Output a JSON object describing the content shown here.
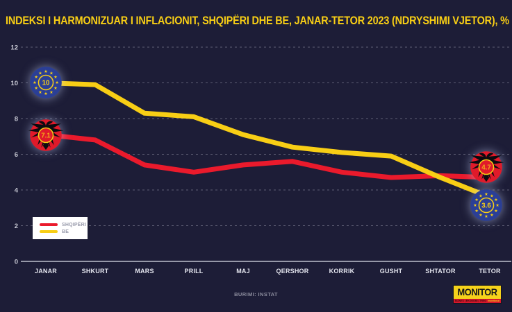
{
  "title": "INDEKSI I HARMONIZUAR I INFLACIONIT, SHQIPËRI DHE BE, JANAR-TETOR 2023 (NDRYSHIMI VJETOR), %",
  "source": "BURIMI: INSTAT",
  "logo": {
    "name": "MONITOR",
    "tagline": "BIZNES | EKONOMI | TREG",
    "site": "monitor.al"
  },
  "colors": {
    "background": "#1d1d37",
    "title_yellow": "#f8ce15",
    "albania_red": "#ea1a2c",
    "eu_yellow": "#f8ce15",
    "eu_flag_blue": "#2b3f96",
    "albania_flag_red": "#e01a2a",
    "badge_ring_yellow": "#f8ce15",
    "gridline": "#5f5f75"
  },
  "chart_data": {
    "type": "line",
    "title": "INDEKSI I HARMONIZUAR I INFLACIONIT, SHQIPËRI DHE BE, JANAR-TETOR 2023 (NDRYSHIMI VJETOR), %",
    "categories": [
      "JANAR",
      "SHKURT",
      "MARS",
      "PRILL",
      "MAJ",
      "QERSHOR",
      "KORRIK",
      "GUSHT",
      "SHTATOR",
      "TETOR"
    ],
    "series": [
      {
        "name": "SHQIPËRI",
        "color": "#ea1a2c",
        "values": [
          7.1,
          6.8,
          5.4,
          5.0,
          5.4,
          5.6,
          5.0,
          4.7,
          4.8,
          4.7
        ]
      },
      {
        "name": "BE",
        "color": "#f8ce15",
        "values": [
          10.0,
          9.9,
          8.3,
          8.1,
          7.1,
          6.4,
          6.1,
          5.9,
          4.7,
          3.6
        ]
      }
    ],
    "ylim": [
      0,
      12
    ],
    "yticks": [
      12,
      10,
      8,
      6,
      4,
      2,
      0
    ],
    "grid": "horizontal-dashed",
    "legend_position": "bottom-left",
    "badges": [
      {
        "flag": "eu",
        "value": "10",
        "month": "JANAR",
        "series": "BE"
      },
      {
        "flag": "albania",
        "value": "7.1",
        "month": "JANAR",
        "series": "SHQIPËRI"
      },
      {
        "flag": "albania",
        "value": "4.7",
        "month": "TETOR",
        "series": "SHQIPËRI"
      },
      {
        "flag": "eu",
        "value": "3.6",
        "month": "TETOR",
        "series": "BE"
      }
    ]
  }
}
